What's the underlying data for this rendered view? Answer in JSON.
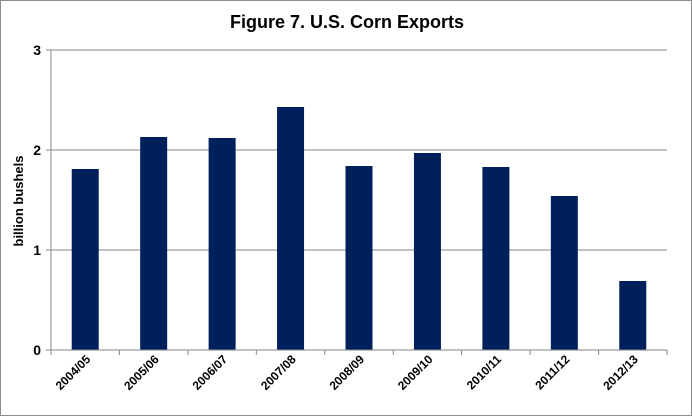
{
  "chart_data": {
    "type": "bar",
    "title": "Figure 7. U.S. Corn Exports",
    "xlabel": "",
    "ylabel": "billion bushels",
    "categories": [
      "2004/05",
      "2005/06",
      "2006/07",
      "2007/08",
      "2008/09",
      "2009/10",
      "2010/11",
      "2011/12",
      "2012/13"
    ],
    "values": [
      1.81,
      2.13,
      2.12,
      2.43,
      1.84,
      1.97,
      1.83,
      1.54,
      0.69
    ],
    "ylim": [
      0,
      3
    ],
    "yticks": [
      "0",
      "1",
      "2",
      "3"
    ],
    "grid": true,
    "legend": "none",
    "colors": {
      "bar": "#00205b",
      "grid": "#868686",
      "axis": "#868686"
    }
  }
}
